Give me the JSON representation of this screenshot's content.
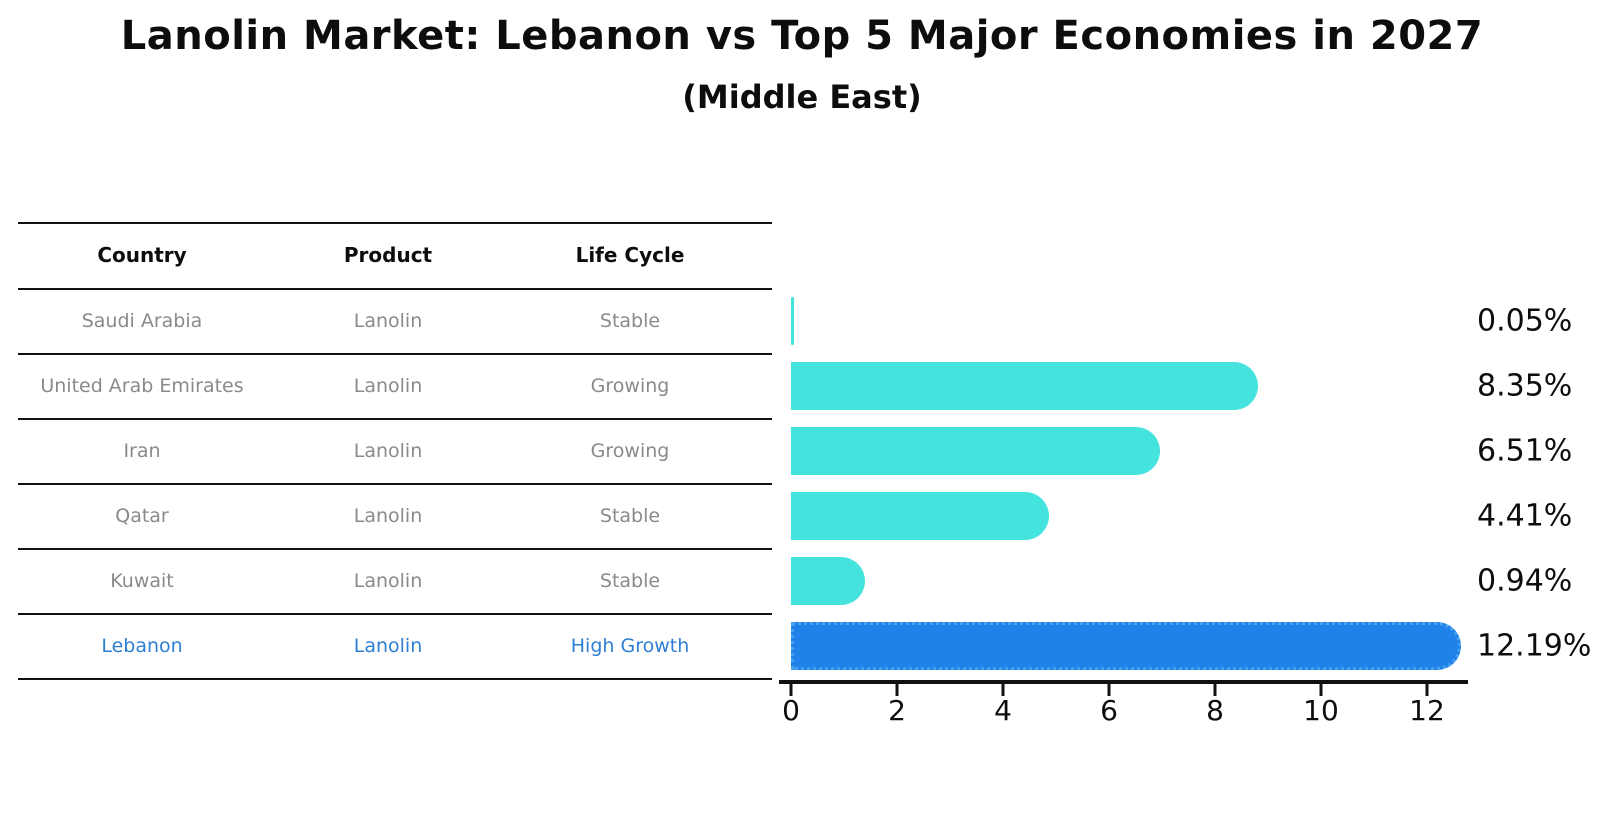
{
  "title": "Lanolin Market: Lebanon vs Top 5 Major Economies in 2027",
  "subtitle": "(Middle East)",
  "table": {
    "headers": [
      "Country",
      "Product",
      "Life Cycle"
    ],
    "rows": [
      {
        "country": "Saudi Arabia",
        "product": "Lanolin",
        "life_cycle": "Stable",
        "highlight": false
      },
      {
        "country": "United Arab Emirates",
        "product": "Lanolin",
        "life_cycle": "Growing",
        "highlight": false
      },
      {
        "country": "Iran",
        "product": "Lanolin",
        "life_cycle": "Growing",
        "highlight": false
      },
      {
        "country": "Qatar",
        "product": "Lanolin",
        "life_cycle": "Stable",
        "highlight": false
      },
      {
        "country": "Kuwait",
        "product": "Lanolin",
        "life_cycle": "Stable",
        "highlight": false
      },
      {
        "country": "Lebanon",
        "product": "Lanolin",
        "life_cycle": "High Growth",
        "highlight": true
      }
    ]
  },
  "chart_data": {
    "type": "bar",
    "orientation": "horizontal",
    "title": "Lanolin Market: Lebanon vs Top 5 Major Economies in 2027",
    "subtitle": "(Middle East)",
    "categories": [
      "Saudi Arabia",
      "United Arab Emirates",
      "Iran",
      "Qatar",
      "Kuwait",
      "Lebanon"
    ],
    "values": [
      0.05,
      8.35,
      6.51,
      4.41,
      0.94,
      12.19
    ],
    "value_labels": [
      "0.05%",
      "8.35%",
      "6.51%",
      "4.41%",
      "0.94%",
      "12.19%"
    ],
    "xlabel": "",
    "ylabel": "",
    "x_ticks": [
      "0",
      "2",
      "4",
      "6",
      "8",
      "10",
      "12"
    ],
    "xlim": [
      0,
      12.8
    ],
    "grid": false,
    "legend": false,
    "bar_color": "#45e3dd",
    "highlight_bar_color": "#1e82e8",
    "highlight_index": 5
  },
  "colors": {
    "background": "#ffffff",
    "bar_cyan": "#45e3dd",
    "bar_blue": "#1e82e8",
    "row_text_gray": "#8a8a8a",
    "highlight_text_blue": "#2e7fd2",
    "axis_black": "#111111"
  }
}
